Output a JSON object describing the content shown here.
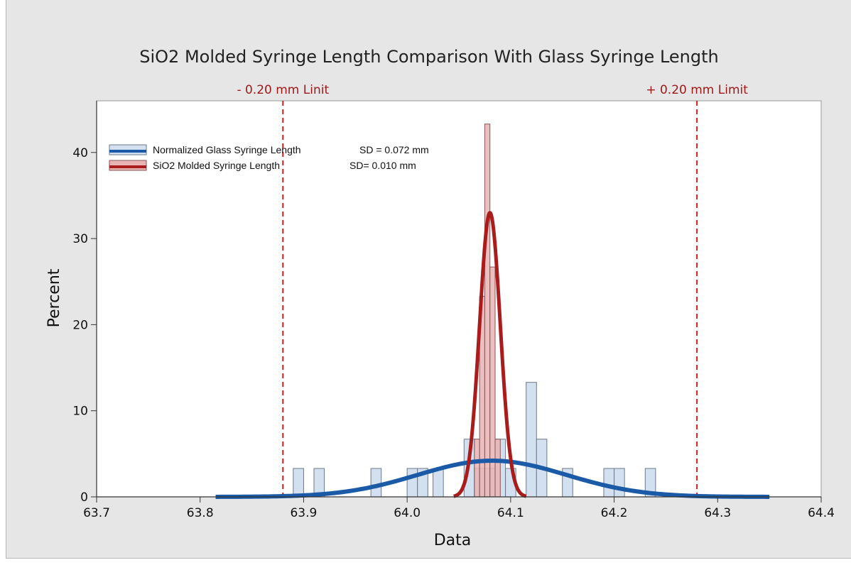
{
  "chart_data": {
    "type": "histogram",
    "title": "SiO2 Molded Syringe Length Comparison With Glass Syringe Length",
    "xlabel": "Data",
    "ylabel": "Percent",
    "xlim": [
      63.7,
      64.4
    ],
    "ylim": [
      0,
      46
    ],
    "xticks": [
      "63.7",
      "63.8",
      "63.9",
      "64.0",
      "64.1",
      "64.2",
      "64.3",
      "64.4"
    ],
    "yticks": [
      "0",
      "10",
      "20",
      "30",
      "40"
    ],
    "grid": false,
    "legend_position": "top-left",
    "reference_lines": [
      {
        "x": 63.88,
        "label": "- 0.20 mm Linit",
        "color": "#cc1f1f"
      },
      {
        "x": 64.28,
        "label": "+ 0.20 mm Limit",
        "color": "#cc1f1f"
      }
    ],
    "series": [
      {
        "name": "Normalized Glass Syringe Length",
        "sd_label": "SD = 0.072 mm",
        "fill": "#d3e0f0",
        "curve_color": "#1b5aa6",
        "bin_width": 0.01,
        "bins_left": [
          63.89,
          63.91,
          63.965,
          64.0,
          64.01,
          64.025,
          64.055,
          64.065,
          64.075,
          64.085,
          64.095,
          64.115,
          64.125,
          64.15,
          64.19,
          64.2,
          64.23
        ],
        "bins_percent": [
          3.3,
          3.3,
          3.3,
          3.3,
          3.3,
          3.3,
          6.7,
          3.3,
          3.3,
          6.7,
          3.3,
          13.3,
          6.7,
          3.3,
          3.3,
          3.3,
          3.3
        ],
        "fit": {
          "mean": 64.082,
          "sd": 0.072,
          "x_range": [
            63.815,
            64.35
          ],
          "peak_percent": 4.2
        }
      },
      {
        "name": "SiO2 Molded Syringe Length",
        "sd_label": "SD= 0.010 mm",
        "fill": "#e8b4b4",
        "curve_color": "#aa1c1c",
        "bin_width": 0.005,
        "bins_left": [
          64.065,
          64.07,
          64.075,
          64.08,
          64.085
        ],
        "bins_percent": [
          6.7,
          23.3,
          43.3,
          26.7,
          6.7
        ],
        "fit": {
          "mean": 64.08,
          "sd": 0.01,
          "x_range": [
            64.045,
            64.115
          ],
          "peak_percent": 33.0
        }
      }
    ]
  }
}
